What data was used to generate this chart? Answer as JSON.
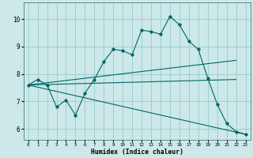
{
  "xlabel": "Humidex (Indice chaleur)",
  "background_color": "#cce8e8",
  "grid_color": "#99cccc",
  "line_color": "#006666",
  "xlim": [
    -0.5,
    23.5
  ],
  "ylim": [
    5.6,
    10.6
  ],
  "yticks": [
    6,
    7,
    8,
    9,
    10
  ],
  "xticks": [
    0,
    1,
    2,
    3,
    4,
    5,
    6,
    7,
    8,
    9,
    10,
    11,
    12,
    13,
    14,
    15,
    16,
    17,
    18,
    19,
    20,
    21,
    22,
    23
  ],
  "series1_x": [
    0,
    1,
    2,
    3,
    4,
    5,
    6,
    7,
    8,
    9,
    10,
    11,
    12,
    13,
    14,
    15,
    16,
    17,
    18,
    19,
    20,
    21,
    22,
    23
  ],
  "series1_y": [
    7.6,
    7.8,
    7.6,
    6.8,
    7.05,
    6.5,
    7.3,
    7.8,
    8.45,
    8.9,
    8.85,
    8.7,
    9.6,
    9.55,
    9.45,
    10.1,
    9.8,
    9.2,
    8.9,
    7.85,
    6.9,
    6.2,
    5.9,
    5.8
  ],
  "series2_x": [
    0,
    22
  ],
  "series2_y": [
    7.6,
    8.5
  ],
  "series3_x": [
    0,
    22
  ],
  "series3_y": [
    7.6,
    7.8
  ],
  "series4_x": [
    0,
    23
  ],
  "series4_y": [
    7.6,
    5.8
  ]
}
